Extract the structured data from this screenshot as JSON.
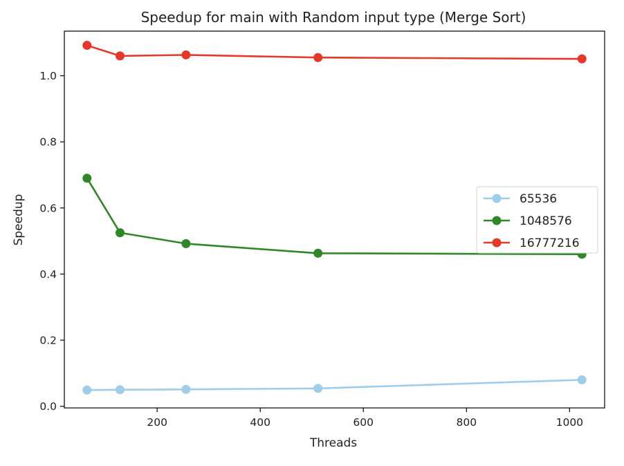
{
  "chart_data": {
    "type": "line",
    "title": "Speedup for main with Random input type (Merge Sort)",
    "xlabel": "Threads",
    "ylabel": "Speedup",
    "x": [
      64,
      128,
      256,
      512,
      1024
    ],
    "xlim": [
      20,
      1068
    ],
    "ylim": [
      -0.005,
      1.135
    ],
    "xticks": [
      200,
      400,
      600,
      800,
      1000
    ],
    "yticks": [
      0.0,
      0.2,
      0.4,
      0.6,
      0.8,
      1.0
    ],
    "xtick_labels": [
      "200",
      "400",
      "600",
      "800",
      "1000"
    ],
    "ytick_labels": [
      "0.0",
      "0.2",
      "0.4",
      "0.6",
      "0.8",
      "1.0"
    ],
    "grid": false,
    "legend_position": "center-right",
    "series": [
      {
        "name": "65536",
        "color": "#9dcde9",
        "values": [
          0.049,
          0.05,
          0.051,
          0.054,
          0.08
        ]
      },
      {
        "name": "1048576",
        "color": "#2f8727",
        "values": [
          0.69,
          0.525,
          0.492,
          0.463,
          0.46
        ]
      },
      {
        "name": "16777216",
        "color": "#e5382b",
        "values": [
          1.092,
          1.06,
          1.063,
          1.055,
          1.051
        ]
      }
    ]
  }
}
